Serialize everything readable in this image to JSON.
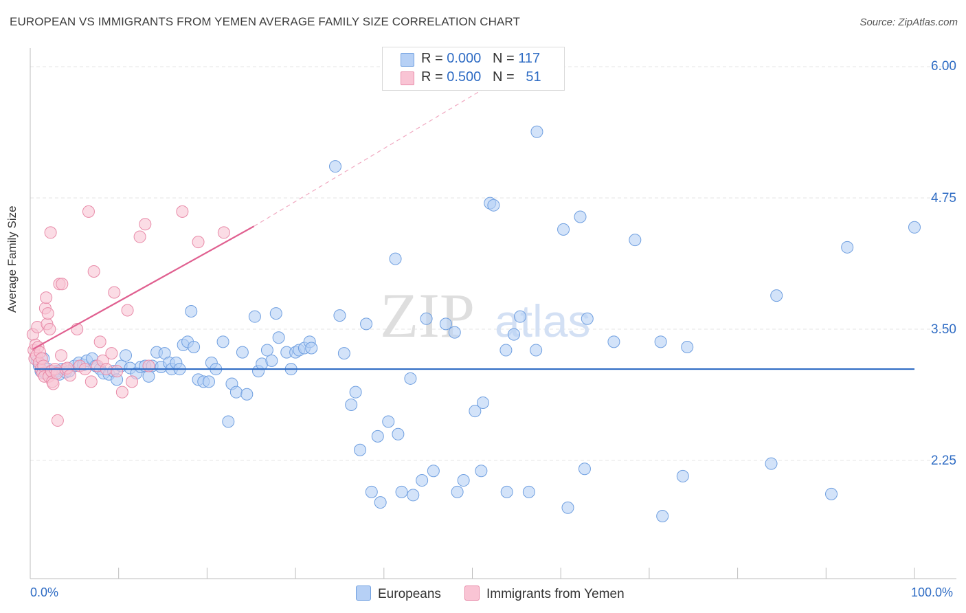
{
  "title": "EUROPEAN VS IMMIGRANTS FROM YEMEN AVERAGE FAMILY SIZE CORRELATION CHART",
  "source": "Source: ZipAtlas.com",
  "legend": {
    "rows": [
      {
        "r_label": "R = ",
        "r_value": "0.000",
        "n_label": "N = ",
        "n_value": "117",
        "color": "#b6d0f5",
        "border": "#6f9fe0"
      },
      {
        "r_label": "R = ",
        "r_value": "0.500",
        "n_label": "N = ",
        "n_value": "51",
        "color": "#f9c4d4",
        "border": "#e88aa8"
      }
    ]
  },
  "bottom_legend": [
    {
      "label": "Europeans",
      "color": "#b6d0f5",
      "border": "#6f9fe0"
    },
    {
      "label": "Immigrants from Yemen",
      "color": "#f9c4d4",
      "border": "#e88aa8"
    }
  ],
  "watermark": {
    "zip": "ZIP",
    "atlas": "atlas"
  },
  "chart_data": {
    "type": "scatter",
    "title": "EUROPEAN VS IMMIGRANTS FROM YEMEN AVERAGE FAMILY SIZE CORRELATION CHART",
    "xlabel": "",
    "ylabel": "Average Family Size",
    "xlim": [
      0,
      100
    ],
    "ylim": [
      1.25,
      6.25
    ],
    "x_tick_labels": [
      "0.0%",
      "100.0%"
    ],
    "y_ticks": [
      2.25,
      3.5,
      4.75,
      6.0
    ],
    "y_tick_labels": [
      "2.25",
      "3.50",
      "4.75",
      "6.00"
    ],
    "grid": true,
    "series": [
      {
        "name": "Europeans",
        "color": "#6f9fe0",
        "fill": "#b6d0f5",
        "trend": {
          "x0": 0.5,
          "y0": 3.12,
          "x1": 100,
          "y1": 3.12,
          "color": "#2f6cc4"
        },
        "points": [
          [
            0.8,
            3.2
          ],
          [
            1,
            3.15
          ],
          [
            1.2,
            3.1
          ],
          [
            1.5,
            3.22
          ],
          [
            1.7,
            3.08
          ],
          [
            2,
            3.12
          ],
          [
            2.3,
            3.1
          ],
          [
            2.6,
            3.08
          ],
          [
            3,
            3.1
          ],
          [
            3.3,
            3.07
          ],
          [
            3.6,
            3.12
          ],
          [
            4,
            3.09
          ],
          [
            4.4,
            3.1
          ],
          [
            5,
            3.15
          ],
          [
            5.5,
            3.18
          ],
          [
            6,
            3.16
          ],
          [
            6.4,
            3.2
          ],
          [
            7,
            3.22
          ],
          [
            7.4,
            3.15
          ],
          [
            7.9,
            3.12
          ],
          [
            8.3,
            3.08
          ],
          [
            8.9,
            3.07
          ],
          [
            9.4,
            3.1
          ],
          [
            9.8,
            3.02
          ],
          [
            10.3,
            3.15
          ],
          [
            10.8,
            3.25
          ],
          [
            11.3,
            3.13
          ],
          [
            12,
            3.08
          ],
          [
            12.5,
            3.14
          ],
          [
            13,
            3.15
          ],
          [
            13.4,
            3.05
          ],
          [
            13.8,
            3.15
          ],
          [
            14.3,
            3.28
          ],
          [
            14.8,
            3.14
          ],
          [
            15.2,
            3.27
          ],
          [
            15.7,
            3.18
          ],
          [
            16,
            3.12
          ],
          [
            16.5,
            3.18
          ],
          [
            16.9,
            3.12
          ],
          [
            17.3,
            3.35
          ],
          [
            17.8,
            3.38
          ],
          [
            18.5,
            3.33
          ],
          [
            18.2,
            3.67
          ],
          [
            19,
            3.02
          ],
          [
            19.6,
            3.0
          ],
          [
            20.2,
            3.0
          ],
          [
            20.5,
            3.18
          ],
          [
            21,
            3.12
          ],
          [
            21.8,
            3.38
          ],
          [
            22.4,
            2.62
          ],
          [
            22.8,
            2.98
          ],
          [
            23.3,
            2.9
          ],
          [
            24,
            3.28
          ],
          [
            24.5,
            2.88
          ],
          [
            25.4,
            3.62
          ],
          [
            25.8,
            3.1
          ],
          [
            26.2,
            3.17
          ],
          [
            26.8,
            3.3
          ],
          [
            27.3,
            3.2
          ],
          [
            27.8,
            3.65
          ],
          [
            28.1,
            3.42
          ],
          [
            29,
            3.28
          ],
          [
            29.5,
            3.12
          ],
          [
            30,
            3.28
          ],
          [
            30.4,
            3.3
          ],
          [
            31,
            3.32
          ],
          [
            31.6,
            3.38
          ],
          [
            31.8,
            3.32
          ],
          [
            34.5,
            5.05
          ],
          [
            35,
            3.63
          ],
          [
            35.5,
            3.27
          ],
          [
            36.3,
            2.78
          ],
          [
            36.8,
            2.9
          ],
          [
            37.3,
            2.35
          ],
          [
            38,
            3.55
          ],
          [
            38.6,
            1.95
          ],
          [
            39.3,
            2.48
          ],
          [
            39.6,
            1.85
          ],
          [
            40.5,
            2.62
          ],
          [
            41.3,
            4.17
          ],
          [
            41.6,
            2.5
          ],
          [
            42,
            1.95
          ],
          [
            43,
            3.03
          ],
          [
            43.3,
            1.92
          ],
          [
            44.3,
            2.06
          ],
          [
            44.8,
            3.6
          ],
          [
            45.6,
            2.15
          ],
          [
            47,
            3.55
          ],
          [
            48,
            3.47
          ],
          [
            48.3,
            1.95
          ],
          [
            49,
            2.06
          ],
          [
            50.3,
            2.72
          ],
          [
            51,
            2.15
          ],
          [
            51.2,
            2.8
          ],
          [
            52,
            4.7
          ],
          [
            52.4,
            4.68
          ],
          [
            53.8,
            3.3
          ],
          [
            53.9,
            1.95
          ],
          [
            54.7,
            3.45
          ],
          [
            55.4,
            3.62
          ],
          [
            56.4,
            1.95
          ],
          [
            57.2,
            3.3
          ],
          [
            57.3,
            5.38
          ],
          [
            60.3,
            4.45
          ],
          [
            60.8,
            1.8
          ],
          [
            62.2,
            4.57
          ],
          [
            62.7,
            2.17
          ],
          [
            63,
            3.6
          ],
          [
            66,
            3.38
          ],
          [
            68.4,
            4.35
          ],
          [
            71.5,
            1.72
          ],
          [
            71.3,
            3.38
          ],
          [
            74.3,
            3.33
          ],
          [
            73.8,
            2.1
          ],
          [
            83.8,
            2.22
          ],
          [
            84.4,
            3.82
          ],
          [
            90.6,
            1.93
          ],
          [
            92.4,
            4.28
          ],
          [
            100,
            4.47
          ]
        ]
      },
      {
        "name": "Immigrants from Yemen",
        "color": "#e88aa8",
        "fill": "#f9c4d4",
        "trend": {
          "x0": 0.3,
          "y0": 3.31,
          "x1": 25.3,
          "y1": 4.48,
          "color": "#e06090",
          "ext_x1": 53.5,
          "ext_y1": 5.9
        },
        "points": [
          [
            0.3,
            3.45
          ],
          [
            0.4,
            3.3
          ],
          [
            0.5,
            3.22
          ],
          [
            0.6,
            3.35
          ],
          [
            0.7,
            3.25
          ],
          [
            0.8,
            3.52
          ],
          [
            0.9,
            3.33
          ],
          [
            1,
            3.18
          ],
          [
            1.1,
            3.28
          ],
          [
            1.2,
            3.12
          ],
          [
            1.3,
            3.22
          ],
          [
            1.4,
            3.08
          ],
          [
            1.5,
            3.15
          ],
          [
            1.6,
            3.05
          ],
          [
            1.7,
            3.7
          ],
          [
            1.8,
            3.8
          ],
          [
            1.9,
            3.55
          ],
          [
            2,
            3.65
          ],
          [
            2.1,
            3.05
          ],
          [
            2.2,
            3.5
          ],
          [
            2.3,
            4.42
          ],
          [
            2.4,
            3.1
          ],
          [
            2.5,
            3.0
          ],
          [
            2.6,
            2.98
          ],
          [
            2.8,
            3.12
          ],
          [
            3,
            3.08
          ],
          [
            3.1,
            2.63
          ],
          [
            3.3,
            3.93
          ],
          [
            3.5,
            3.25
          ],
          [
            3.6,
            3.93
          ],
          [
            4,
            3.12
          ],
          [
            4.2,
            3.13
          ],
          [
            4.5,
            3.06
          ],
          [
            5.3,
            3.5
          ],
          [
            5.6,
            3.15
          ],
          [
            6.2,
            3.12
          ],
          [
            6.6,
            4.62
          ],
          [
            6.9,
            3.0
          ],
          [
            7.2,
            4.05
          ],
          [
            7.6,
            3.15
          ],
          [
            7.9,
            3.38
          ],
          [
            8.2,
            3.2
          ],
          [
            8.6,
            3.12
          ],
          [
            9.2,
            3.27
          ],
          [
            9.5,
            3.85
          ],
          [
            9.8,
            3.1
          ],
          [
            10.4,
            2.9
          ],
          [
            11,
            3.68
          ],
          [
            11.5,
            3.0
          ],
          [
            12.4,
            4.38
          ],
          [
            13,
            4.5
          ],
          [
            13.4,
            3.15
          ],
          [
            17.2,
            4.62
          ],
          [
            19,
            4.33
          ],
          [
            21.9,
            4.42
          ]
        ]
      }
    ]
  }
}
